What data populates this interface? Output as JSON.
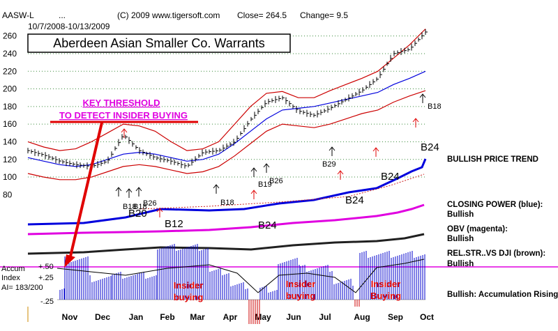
{
  "header": {
    "symbol": "AASW-L",
    "dots": "...",
    "copyright": "(C) 2009 www.tigersoft.com",
    "close": "Close=  264.5",
    "change": "Change= 9.5",
    "date_range": "10/7/2008-10/13/2009"
  },
  "chart_title": "Aberdeen Asian Smaller Co. Warrants",
  "key_threshold": [
    "KEY THRESHOLD",
    "TO DETECT INSIDER BUYING"
  ],
  "side_labels": {
    "trend": "BULLISH PRICE TREND",
    "cp": "CLOSING POWER (blue):",
    "cp_val": "Bullish",
    "obv": "OBV (magenta):",
    "obv_val": "Bullish",
    "rs": "REL.STR..VS DJI (brown):",
    "rs_val": "Bullish",
    "accum": "Bullish: Accumulation Rising"
  },
  "accum_panel": {
    "accum_label": "Accum",
    "index_label": "Index",
    "ai_label": "AI= 183/200",
    "ticks": [
      "+.50",
      "+.25",
      "-.25"
    ],
    "insider_labels": [
      [
        "Insider",
        "buying"
      ],
      [
        "Insider",
        "buying"
      ],
      [
        "Insider",
        "Buying"
      ]
    ]
  },
  "signals": {
    "price": [
      "B18",
      "B18",
      "B26",
      "B18",
      "B19",
      "B26",
      "B29",
      "B18",
      "B24"
    ],
    "cp": [
      "B20",
      "B12",
      "B24",
      "B24",
      "B24"
    ]
  },
  "chart_data": {
    "type": "line",
    "title": "Aberdeen Asian Smaller Co. Warrants",
    "x_labels": [
      "Nov",
      "Dec",
      "Jan",
      "Feb",
      "Mar",
      "Apr",
      "May",
      "Jun",
      "Jul",
      "Aug",
      "Sep",
      "Oct"
    ],
    "y_ticks": [
      80,
      100,
      120,
      140,
      160,
      180,
      200,
      220,
      240,
      260
    ],
    "ylim": [
      70,
      270
    ],
    "series": [
      {
        "name": "Price",
        "values": [
          130,
          125,
          118,
          114,
          112,
          118,
          148,
          130,
          122,
          118,
          112,
          128,
          130,
          140,
          165,
          185,
          190,
          175,
          170,
          178,
          188,
          198,
          212,
          240,
          245,
          264.5
        ]
      },
      {
        "name": "Upper band",
        "values": [
          140,
          134,
          130,
          132,
          140,
          150,
          160,
          158,
          152,
          140,
          130,
          132,
          140,
          160,
          180,
          195,
          197,
          190,
          190,
          198,
          205,
          212,
          220,
          235,
          250,
          268
        ]
      },
      {
        "name": "Middle average",
        "values": [
          122,
          118,
          114,
          112,
          114,
          120,
          126,
          128,
          126,
          122,
          118,
          120,
          126,
          138,
          152,
          166,
          176,
          178,
          180,
          184,
          188,
          192,
          196,
          205,
          212,
          220
        ]
      },
      {
        "name": "Lower band",
        "values": [
          104,
          100,
          97,
          97,
          100,
          106,
          112,
          114,
          112,
          108,
          104,
          106,
          112,
          124,
          138,
          152,
          160,
          158,
          156,
          160,
          166,
          172,
          176,
          185,
          192,
          198
        ]
      }
    ]
  }
}
